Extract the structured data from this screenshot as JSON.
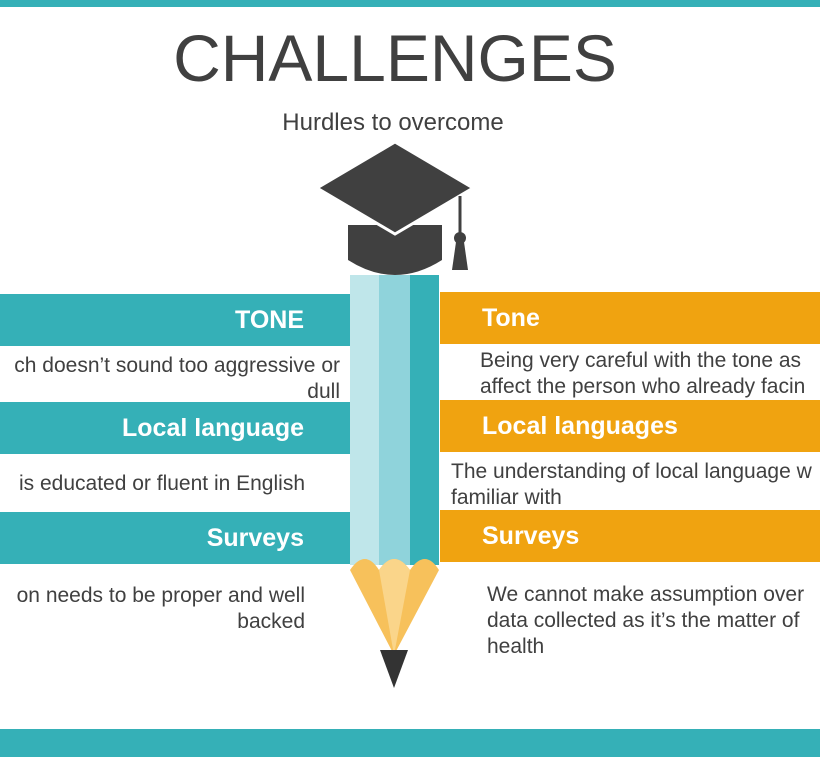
{
  "title": "CHALLENGES",
  "subtitle": "Hurdles to overcome",
  "left_items": [
    {
      "heading": "TONE",
      "text_lines": [
        "ch doesn’t sound too aggressive or",
        "dull"
      ]
    },
    {
      "heading": "Local language",
      "text_lines": [
        "is educated or fluent in English"
      ]
    },
    {
      "heading": "Surveys",
      "text_lines": [
        "on needs to be proper and well",
        "backed"
      ]
    }
  ],
  "right_items": [
    {
      "heading": "Tone",
      "text_lines": [
        "Being very careful with the tone as",
        "affect the person who already facin"
      ]
    },
    {
      "heading": "Local languages",
      "text_lines": [
        "The understanding of local language w",
        "familiar with"
      ]
    },
    {
      "heading": "Surveys",
      "text_lines": [
        "We cannot make assumption over",
        "data collected as it’s the matter of",
        "health"
      ]
    }
  ],
  "colors": {
    "teal": "#35b0b7",
    "orange": "#f0a310",
    "dark": "#404040",
    "pencil_light": "#bfe6ea",
    "pencil_mid": "#8fd3db",
    "pencil_tip": "#f7c15b"
  },
  "icons": [
    "graduation-cap-icon",
    "pencil-icon"
  ]
}
